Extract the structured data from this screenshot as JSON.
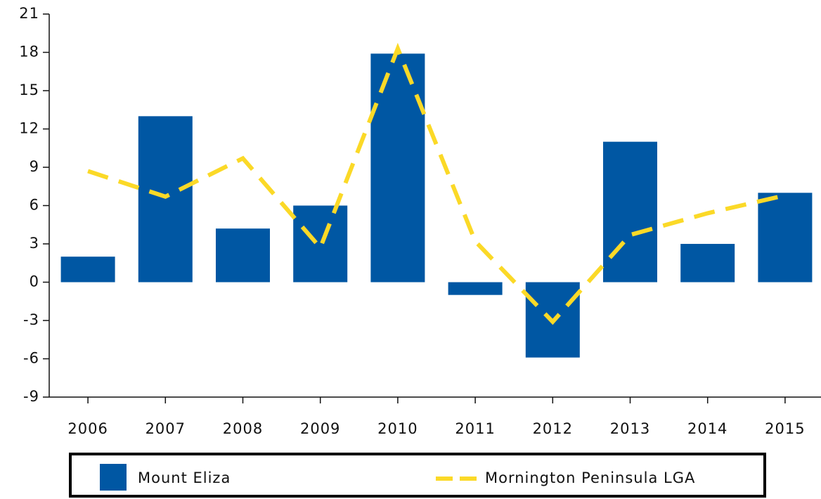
{
  "chart_data": {
    "type": "bar_line",
    "categories": [
      "2006",
      "2007",
      "2008",
      "2009",
      "2010",
      "2011",
      "2012",
      "2013",
      "2014",
      "2015"
    ],
    "series": [
      {
        "name": "Mount Eliza",
        "type": "bar",
        "color": "#0057a3",
        "values": [
          2.0,
          13.0,
          4.2,
          6.0,
          17.9,
          -1.0,
          -5.9,
          11.0,
          3.0,
          7.0
        ]
      },
      {
        "name": "Mornington Peninsula LGA",
        "type": "line",
        "color": "#fbd927",
        "values": [
          8.7,
          6.7,
          9.7,
          2.7,
          18.3,
          3.2,
          -3.1,
          3.7,
          5.4,
          6.8
        ]
      }
    ],
    "ylim": [
      -9,
      21
    ],
    "yticks": [
      -9,
      -6,
      -3,
      0,
      3,
      6,
      9,
      12,
      15,
      18,
      21
    ],
    "grid": false
  }
}
